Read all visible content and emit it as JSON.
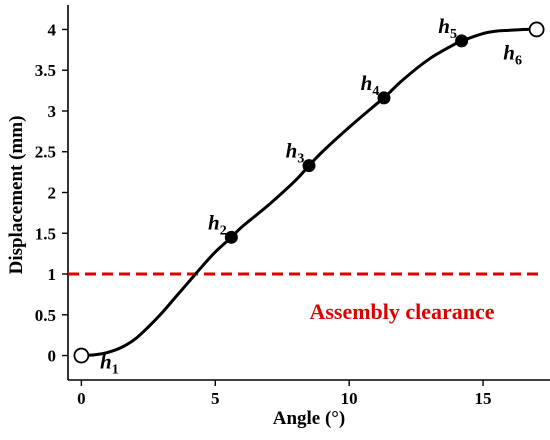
{
  "chart_data": {
    "type": "line",
    "xlabel": "Angle (°)",
    "ylabel": "Displacement (mm)",
    "xlim": [
      -0.5,
      17.5
    ],
    "ylim": [
      -0.3,
      4.3
    ],
    "x_ticks": [
      0,
      5,
      10,
      15
    ],
    "y_ticks": [
      0,
      0.5,
      1,
      1.5,
      2,
      2.5,
      3,
      3.5,
      4
    ],
    "grid": false,
    "curve": {
      "color": "#000000",
      "x": [
        0,
        0.5,
        1,
        1.5,
        2,
        2.5,
        3,
        3.5,
        4,
        4.5,
        5,
        5.6,
        6,
        7,
        8,
        8.5,
        9,
        10,
        11,
        11.3,
        12,
        13,
        14,
        14.2,
        15,
        15.5,
        16,
        16.5,
        17
      ],
      "y": [
        0,
        0.01,
        0.04,
        0.1,
        0.2,
        0.35,
        0.52,
        0.71,
        0.9,
        1.09,
        1.27,
        1.45,
        1.58,
        1.85,
        2.15,
        2.33,
        2.5,
        2.8,
        3.08,
        3.16,
        3.38,
        3.64,
        3.83,
        3.86,
        3.95,
        3.98,
        3.99,
        4.0,
        4.0
      ]
    },
    "points": [
      {
        "x": 0,
        "y": 0,
        "label": "h",
        "sub": "1",
        "style": "open"
      },
      {
        "x": 5.6,
        "y": 1.45,
        "label": "h",
        "sub": "2",
        "style": "filled"
      },
      {
        "x": 8.5,
        "y": 2.33,
        "label": "h",
        "sub": "3",
        "style": "filled"
      },
      {
        "x": 11.3,
        "y": 3.16,
        "label": "h",
        "sub": "4",
        "style": "filled"
      },
      {
        "x": 14.2,
        "y": 3.86,
        "label": "h",
        "sub": "5",
        "style": "filled"
      },
      {
        "x": 17,
        "y": 4.0,
        "label": "h",
        "sub": "6",
        "style": "open"
      }
    ],
    "threshold": {
      "y": 1,
      "label": "Assembly clearance",
      "color": "#dd0000",
      "style": "dashed"
    }
  }
}
